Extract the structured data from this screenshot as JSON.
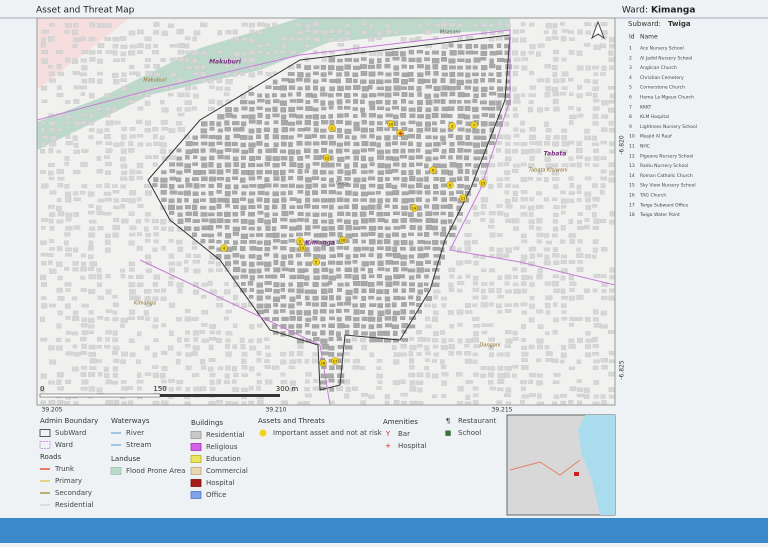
{
  "header": {
    "title": "Asset and Threat Map",
    "ward_label": "Ward:",
    "ward_name": "Kimanga"
  },
  "map": {
    "place_labels": [
      "Msasani",
      "Makuburi",
      "Makuburi",
      "Tabata",
      "Tabata Kisiwani",
      "Kimanga",
      "Twiga",
      "Kimanga",
      "Dangani"
    ],
    "scale_labels": [
      "0",
      "150",
      "300 m"
    ],
    "lon_labels": [
      "39.205",
      "39.210",
      "39.215"
    ],
    "lat_labels": [
      "-6.820",
      "-6.825"
    ]
  },
  "panel": {
    "subward_label": "Subward:",
    "subward_name": "Twiga",
    "columns": [
      "Id",
      "Name"
    ],
    "rows": [
      [
        "1",
        "Ace Nursery School"
      ],
      [
        "2",
        "Al Jadid Nursery School"
      ],
      [
        "3",
        "Anglican Church"
      ],
      [
        "4",
        "Christian Cemetery"
      ],
      [
        "5",
        "Cornerstone Church"
      ],
      [
        "6",
        "Hema La Mgeuo Church"
      ],
      [
        "7",
        "KKKT"
      ],
      [
        "8",
        "KLM Hospital"
      ],
      [
        "9",
        "Lightness Nursery School"
      ],
      [
        "10",
        "Masjid Al Rauf"
      ],
      [
        "11",
        "NHC"
      ],
      [
        "12",
        "Pigeone Nursery School"
      ],
      [
        "13",
        "Radiu Nursery School"
      ],
      [
        "14",
        "Roman Catholic Church"
      ],
      [
        "15",
        "Sky View Nursery School"
      ],
      [
        "16",
        "TAG Church"
      ],
      [
        "17",
        "Twiga Subward Office"
      ],
      [
        "18",
        "Twiga Water Point"
      ]
    ]
  },
  "legend": {
    "sections": [
      {
        "title": "Admin Boundary",
        "items": [
          "SubWard",
          "Ward"
        ]
      },
      {
        "title": "Roads",
        "items": [
          "Trunk",
          "Primary",
          "Secondary",
          "Residential"
        ]
      },
      {
        "title": "Waterways",
        "items": [
          "River",
          "Stream"
        ]
      },
      {
        "title": "Landuse",
        "items": [
          "Flood Prone Area"
        ]
      },
      {
        "title": "Buildings",
        "items": [
          "Residential",
          "Religious",
          "Education",
          "Commercial",
          "Hospital",
          "Office"
        ]
      },
      {
        "title": "Assets and Threats",
        "items": [
          "Important asset and not at risk"
        ]
      },
      {
        "title": "Amenities",
        "items": [
          "Bar",
          "Hospital"
        ]
      },
      {
        "items": [
          "Restaurant",
          "School"
        ]
      }
    ]
  }
}
